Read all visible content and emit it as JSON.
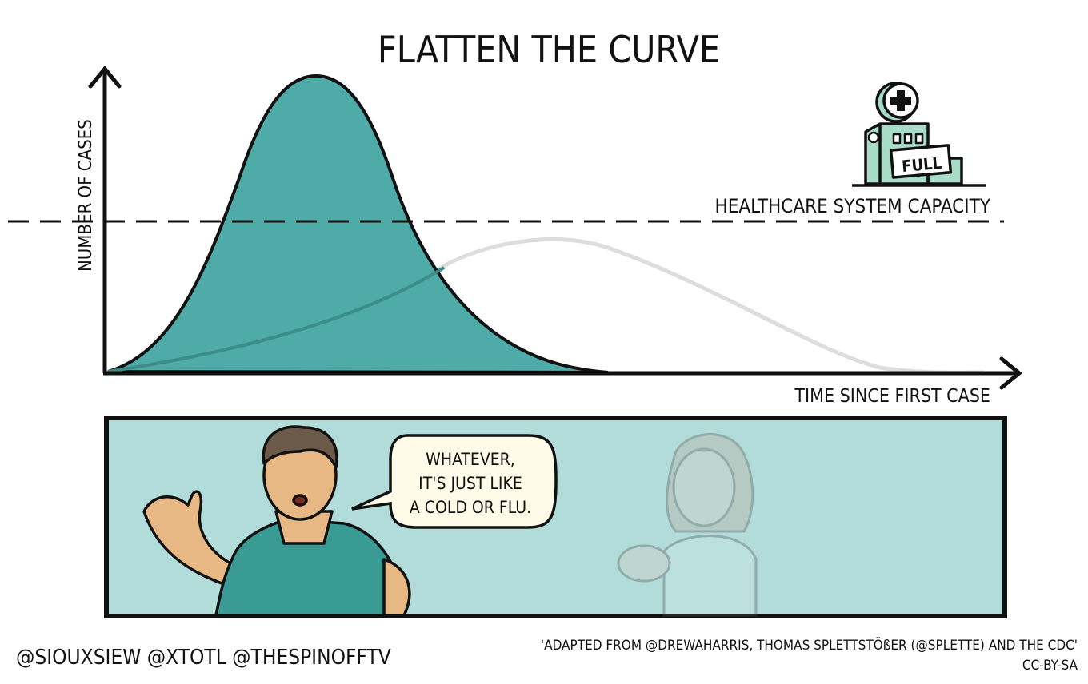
{
  "title": "FLATTEN THE CURVE",
  "y_axis_label": "NUMBER OF CASES",
  "x_axis_label": "TIME SINCE FIRST CASE",
  "capacity_label": "HEALTHCARE SYSTEM CAPACITY",
  "hospital_sign": "FULL",
  "speech_bubble": [
    "WHATEVER,",
    "IT'S JUST LIKE",
    "A COLD OR FLU."
  ],
  "credits_left": "@SIOUXSIEW @XTOTL @THESPINOFFTV",
  "credits_right": "'ADAPTED FROM @DREWAHARRIS, THOMAS SPLETTSTÖßER (@SPLETTE) AND THE CDC'",
  "license": "CC-BY-SA",
  "colors": {
    "teal_curve": "#45a6a2",
    "grey_curve": "#dddddd",
    "panel_bg": "#b2dcd9",
    "hospital": "#a8dcc8",
    "shirt": "#3a9b94"
  }
}
